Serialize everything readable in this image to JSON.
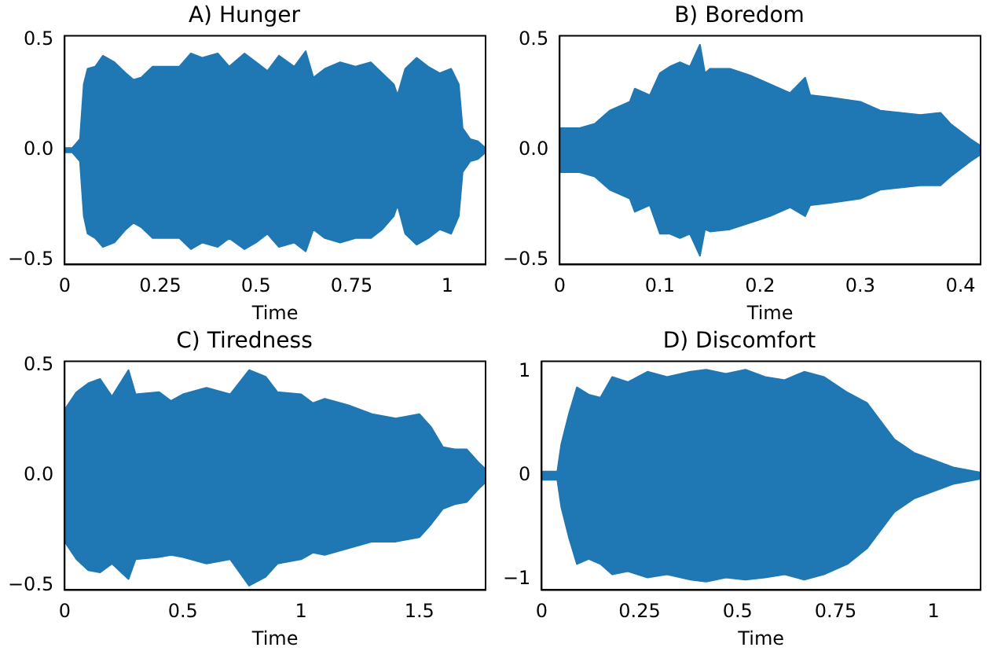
{
  "chart_data": [
    {
      "type": "area",
      "title": "A) Hunger",
      "xlabel": "Time",
      "xlim": [
        0,
        1.1
      ],
      "xticks": [
        0,
        0.25,
        0.5,
        0.75,
        1
      ],
      "ylim": [
        -0.52,
        0.52
      ],
      "yticks": [
        {
          "value": -0.5,
          "label": "−0.5"
        },
        {
          "value": 0,
          "label": "0.0"
        },
        0.5
      ],
      "grid": false,
      "legend": false,
      "series": [
        {
          "color": "#1f77b4",
          "x": [
            0,
            0.02,
            0.04,
            0.05,
            0.06,
            0.08,
            0.1,
            0.13,
            0.16,
            0.18,
            0.2,
            0.23,
            0.26,
            0.3,
            0.33,
            0.36,
            0.4,
            0.43,
            0.47,
            0.5,
            0.53,
            0.56,
            0.6,
            0.63,
            0.65,
            0.68,
            0.72,
            0.76,
            0.8,
            0.83,
            0.86,
            0.87,
            0.89,
            0.92,
            0.95,
            0.98,
            1.01,
            1.03,
            1.04,
            1.06,
            1.08,
            1.1
          ],
          "values": [
            0.01,
            0.01,
            0.05,
            0.3,
            0.37,
            0.38,
            0.43,
            0.4,
            0.35,
            0.32,
            0.33,
            0.38,
            0.38,
            0.38,
            0.44,
            0.42,
            0.44,
            0.38,
            0.44,
            0.4,
            0.36,
            0.43,
            0.38,
            0.45,
            0.33,
            0.37,
            0.4,
            0.38,
            0.4,
            0.35,
            0.3,
            0.25,
            0.37,
            0.42,
            0.38,
            0.35,
            0.37,
            0.3,
            0.1,
            0.05,
            0.04,
            0.01
          ]
        },
        {
          "color": "#1f77b4",
          "x": [
            0,
            0.02,
            0.04,
            0.05,
            0.06,
            0.08,
            0.1,
            0.13,
            0.16,
            0.18,
            0.2,
            0.23,
            0.26,
            0.3,
            0.33,
            0.36,
            0.4,
            0.43,
            0.47,
            0.5,
            0.53,
            0.56,
            0.6,
            0.63,
            0.65,
            0.68,
            0.72,
            0.76,
            0.8,
            0.83,
            0.86,
            0.87,
            0.89,
            0.92,
            0.95,
            0.98,
            1.01,
            1.03,
            1.04,
            1.06,
            1.08,
            1.1
          ],
          "values": [
            -0.01,
            -0.01,
            -0.05,
            -0.3,
            -0.38,
            -0.4,
            -0.44,
            -0.42,
            -0.36,
            -0.33,
            -0.35,
            -0.4,
            -0.4,
            -0.4,
            -0.45,
            -0.42,
            -0.44,
            -0.4,
            -0.45,
            -0.42,
            -0.38,
            -0.44,
            -0.42,
            -0.46,
            -0.36,
            -0.4,
            -0.42,
            -0.4,
            -0.4,
            -0.36,
            -0.3,
            -0.25,
            -0.38,
            -0.43,
            -0.4,
            -0.36,
            -0.38,
            -0.3,
            -0.1,
            -0.05,
            -0.04,
            -0.01
          ]
        }
      ]
    },
    {
      "type": "area",
      "title": "B) Boredom",
      "xlabel": "Time",
      "xlim": [
        0,
        0.42
      ],
      "xticks": [
        0,
        0.1,
        0.2,
        0.3,
        0.4
      ],
      "ylim": [
        -0.52,
        0.52
      ],
      "yticks": [
        {
          "value": -0.5,
          "label": "−0.5"
        },
        {
          "value": 0,
          "label": "0.0"
        },
        0.5
      ],
      "grid": false,
      "legend": false,
      "series": [
        {
          "color": "#1f77b4",
          "x": [
            0,
            0.02,
            0.035,
            0.05,
            0.07,
            0.075,
            0.09,
            0.1,
            0.11,
            0.12,
            0.13,
            0.14,
            0.145,
            0.15,
            0.17,
            0.19,
            0.21,
            0.23,
            0.245,
            0.25,
            0.27,
            0.3,
            0.32,
            0.34,
            0.36,
            0.38,
            0.39,
            0.41,
            0.42
          ],
          "values": [
            0.1,
            0.1,
            0.12,
            0.18,
            0.22,
            0.28,
            0.25,
            0.35,
            0.38,
            0.4,
            0.38,
            0.48,
            0.35,
            0.37,
            0.37,
            0.34,
            0.3,
            0.26,
            0.33,
            0.25,
            0.24,
            0.22,
            0.18,
            0.17,
            0.16,
            0.17,
            0.12,
            0.05,
            0.02
          ]
        },
        {
          "color": "#1f77b4",
          "x": [
            0,
            0.02,
            0.035,
            0.05,
            0.07,
            0.075,
            0.09,
            0.1,
            0.11,
            0.12,
            0.13,
            0.14,
            0.145,
            0.15,
            0.17,
            0.19,
            0.21,
            0.23,
            0.245,
            0.25,
            0.27,
            0.3,
            0.32,
            0.34,
            0.36,
            0.38,
            0.39,
            0.41,
            0.42
          ],
          "values": [
            -0.1,
            -0.1,
            -0.12,
            -0.18,
            -0.22,
            -0.28,
            -0.25,
            -0.38,
            -0.38,
            -0.4,
            -0.38,
            -0.48,
            -0.36,
            -0.37,
            -0.36,
            -0.33,
            -0.3,
            -0.26,
            -0.3,
            -0.25,
            -0.24,
            -0.22,
            -0.18,
            -0.17,
            -0.16,
            -0.16,
            -0.12,
            -0.05,
            -0.02
          ]
        }
      ]
    },
    {
      "type": "area",
      "title": "C) Tiredness",
      "xlabel": "Time",
      "xlim": [
        0,
        1.78
      ],
      "xticks": [
        0,
        0.5,
        1,
        1.5
      ],
      "ylim": [
        -0.52,
        0.52
      ],
      "yticks": [
        {
          "value": -0.5,
          "label": "−0.5"
        },
        {
          "value": 0,
          "label": "0.0"
        },
        0.5
      ],
      "grid": false,
      "legend": false,
      "series": [
        {
          "color": "#1f77b4",
          "x": [
            0,
            0.05,
            0.1,
            0.15,
            0.2,
            0.27,
            0.3,
            0.4,
            0.45,
            0.5,
            0.6,
            0.7,
            0.78,
            0.85,
            0.9,
            1.0,
            1.05,
            1.1,
            1.2,
            1.3,
            1.4,
            1.5,
            1.55,
            1.6,
            1.65,
            1.7,
            1.75,
            1.78
          ],
          "values": [
            0.3,
            0.38,
            0.42,
            0.44,
            0.36,
            0.48,
            0.37,
            0.38,
            0.34,
            0.37,
            0.4,
            0.37,
            0.48,
            0.45,
            0.38,
            0.37,
            0.33,
            0.35,
            0.32,
            0.28,
            0.26,
            0.28,
            0.22,
            0.13,
            0.12,
            0.12,
            0.06,
            0.03
          ]
        },
        {
          "color": "#1f77b4",
          "x": [
            0,
            0.05,
            0.1,
            0.15,
            0.2,
            0.27,
            0.3,
            0.4,
            0.45,
            0.5,
            0.6,
            0.7,
            0.78,
            0.85,
            0.9,
            1.0,
            1.05,
            1.1,
            1.2,
            1.3,
            1.4,
            1.5,
            1.55,
            1.6,
            1.65,
            1.7,
            1.75,
            1.78
          ],
          "values": [
            -0.3,
            -0.38,
            -0.43,
            -0.44,
            -0.4,
            -0.47,
            -0.38,
            -0.37,
            -0.36,
            -0.37,
            -0.4,
            -0.38,
            -0.5,
            -0.46,
            -0.4,
            -0.38,
            -0.35,
            -0.36,
            -0.33,
            -0.3,
            -0.3,
            -0.28,
            -0.22,
            -0.15,
            -0.13,
            -0.12,
            -0.06,
            -0.03
          ]
        }
      ]
    },
    {
      "type": "area",
      "title": "D) Discomfort",
      "xlabel": "Time",
      "xlim": [
        0,
        1.12
      ],
      "xticks": [
        0,
        0.25,
        0.5,
        0.75,
        1
      ],
      "ylim": [
        -1.1,
        1.1
      ],
      "yticks": [
        {
          "value": -1,
          "label": "−1"
        },
        0,
        1
      ],
      "grid": false,
      "legend": false,
      "series": [
        {
          "color": "#1f77b4",
          "x": [
            0,
            0.04,
            0.05,
            0.07,
            0.09,
            0.12,
            0.15,
            0.18,
            0.22,
            0.27,
            0.32,
            0.38,
            0.42,
            0.47,
            0.52,
            0.57,
            0.62,
            0.67,
            0.72,
            0.78,
            0.83,
            0.86,
            0.9,
            0.95,
            1.0,
            1.05,
            1.12
          ],
          "values": [
            0.04,
            0.04,
            0.3,
            0.6,
            0.85,
            0.78,
            0.75,
            0.95,
            0.9,
            1.0,
            0.95,
            1.0,
            1.02,
            0.98,
            1.02,
            0.95,
            0.92,
            1.0,
            0.95,
            0.8,
            0.7,
            0.55,
            0.35,
            0.22,
            0.15,
            0.08,
            0.03
          ]
        },
        {
          "color": "#1f77b4",
          "x": [
            0,
            0.04,
            0.05,
            0.07,
            0.09,
            0.12,
            0.15,
            0.18,
            0.22,
            0.27,
            0.32,
            0.38,
            0.42,
            0.47,
            0.52,
            0.57,
            0.62,
            0.67,
            0.72,
            0.78,
            0.83,
            0.86,
            0.9,
            0.95,
            1.0,
            1.05,
            1.12
          ],
          "values": [
            -0.04,
            -0.04,
            -0.3,
            -0.6,
            -0.85,
            -0.8,
            -0.85,
            -0.95,
            -0.92,
            -0.98,
            -0.95,
            -1.0,
            -1.02,
            -0.98,
            -1.0,
            -0.98,
            -0.95,
            -1.0,
            -0.95,
            -0.85,
            -0.7,
            -0.55,
            -0.35,
            -0.22,
            -0.15,
            -0.08,
            -0.03
          ]
        }
      ]
    }
  ]
}
